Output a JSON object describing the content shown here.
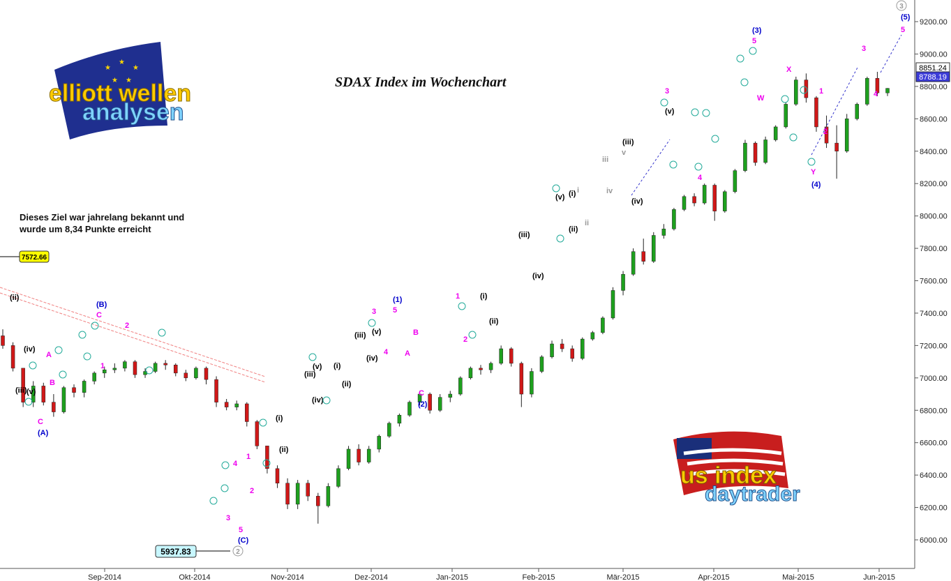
{
  "chart_data": {
    "type": "candlestick",
    "title": "SDAX Index im Wochenchart",
    "ylim": [
      5880,
      9300
    ],
    "y_ticks": [
      "6000.00",
      "6200.00",
      "6400.00",
      "6600.00",
      "6800.00",
      "7000.00",
      "7200.00",
      "7400.00",
      "7600.00",
      "7800.00",
      "8000.00",
      "8200.00",
      "8400.00",
      "8600.00",
      "8800.00",
      "9000.00",
      "9200.00"
    ],
    "x_ticks": [
      "Sep-2014",
      "Okt-2014",
      "Nov-2014",
      "Dez-2014",
      "Jan-2015",
      "Feb-2015",
      "Mär-2015",
      "Apr-2015",
      "Mai-2015",
      "Jun-2015"
    ],
    "price_labels": {
      "last_close": "8788.19",
      "high_mark": "8851.24"
    },
    "annotation": "Dieses Ziel war jahrelang bekannt und wurde um 8,34 Punkte erreicht",
    "target_box": "7572.66",
    "low_box": "5937.83",
    "candles": [
      [
        7260,
        7300,
        7180,
        7200
      ],
      [
        7200,
        7220,
        7040,
        7060
      ],
      [
        7060,
        7060,
        6820,
        6850
      ],
      [
        6850,
        6980,
        6820,
        6950
      ],
      [
        6950,
        6970,
        6830,
        6850
      ],
      [
        6850,
        6900,
        6760,
        6790
      ],
      [
        6790,
        6950,
        6780,
        6940
      ],
      [
        6940,
        6960,
        6880,
        6910
      ],
      [
        6910,
        6990,
        6880,
        6980
      ],
      [
        6980,
        7040,
        6960,
        7030
      ],
      [
        7030,
        7070,
        7000,
        7050
      ],
      [
        7050,
        7090,
        7030,
        7060
      ],
      [
        7060,
        7110,
        7040,
        7100
      ],
      [
        7100,
        7110,
        7000,
        7020
      ],
      [
        7020,
        7060,
        7000,
        7040
      ],
      [
        7040,
        7100,
        7030,
        7090
      ],
      [
        7090,
        7110,
        7050,
        7080
      ],
      [
        7080,
        7090,
        7010,
        7030
      ],
      [
        7030,
        7050,
        6980,
        7000
      ],
      [
        7000,
        7070,
        6990,
        7060
      ],
      [
        7060,
        7070,
        6960,
        6990
      ],
      [
        6990,
        7010,
        6820,
        6850
      ],
      [
        6850,
        6870,
        6800,
        6820
      ],
      [
        6820,
        6860,
        6800,
        6840
      ],
      [
        6840,
        6850,
        6700,
        6730
      ],
      [
        6730,
        6740,
        6560,
        6580
      ],
      [
        6580,
        6580,
        6410,
        6440
      ],
      [
        6440,
        6460,
        6320,
        6350
      ],
      [
        6350,
        6380,
        6190,
        6220
      ],
      [
        6220,
        6370,
        6190,
        6350
      ],
      [
        6350,
        6370,
        6240,
        6270
      ],
      [
        6270,
        6290,
        6100,
        6210
      ],
      [
        6210,
        6350,
        6200,
        6330
      ],
      [
        6330,
        6460,
        6320,
        6440
      ],
      [
        6440,
        6580,
        6430,
        6560
      ],
      [
        6560,
        6590,
        6460,
        6480
      ],
      [
        6480,
        6580,
        6470,
        6560
      ],
      [
        6560,
        6650,
        6540,
        6640
      ],
      [
        6640,
        6730,
        6630,
        6720
      ],
      [
        6720,
        6780,
        6700,
        6770
      ],
      [
        6770,
        6860,
        6760,
        6850
      ],
      [
        6850,
        6920,
        6830,
        6900
      ],
      [
        6900,
        6910,
        6780,
        6800
      ],
      [
        6800,
        6900,
        6790,
        6880
      ],
      [
        6880,
        6920,
        6850,
        6900
      ],
      [
        6900,
        7010,
        6890,
        7000
      ],
      [
        7000,
        7070,
        6990,
        7060
      ],
      [
        7060,
        7080,
        7020,
        7050
      ],
      [
        7050,
        7100,
        7030,
        7090
      ],
      [
        7090,
        7200,
        7080,
        7180
      ],
      [
        7180,
        7190,
        7070,
        7090
      ],
      [
        7090,
        7100,
        6820,
        6900
      ],
      [
        6900,
        7060,
        6880,
        7040
      ],
      [
        7040,
        7140,
        7030,
        7130
      ],
      [
        7130,
        7230,
        7120,
        7210
      ],
      [
        7210,
        7240,
        7160,
        7180
      ],
      [
        7180,
        7200,
        7100,
        7120
      ],
      [
        7120,
        7250,
        7110,
        7240
      ],
      [
        7240,
        7290,
        7230,
        7280
      ],
      [
        7280,
        7380,
        7270,
        7370
      ],
      [
        7370,
        7560,
        7360,
        7540
      ],
      [
        7540,
        7660,
        7510,
        7640
      ],
      [
        7640,
        7800,
        7630,
        7780
      ],
      [
        7780,
        7860,
        7700,
        7720
      ],
      [
        7720,
        7900,
        7710,
        7880
      ],
      [
        7880,
        7950,
        7860,
        7920
      ],
      [
        7920,
        8050,
        7910,
        8040
      ],
      [
        8040,
        8130,
        8030,
        8120
      ],
      [
        8120,
        8140,
        8060,
        8080
      ],
      [
        8080,
        8200,
        8070,
        8190
      ],
      [
        8190,
        8200,
        7970,
        8030
      ],
      [
        8030,
        8160,
        8020,
        8150
      ],
      [
        8150,
        8290,
        8140,
        8280
      ],
      [
        8280,
        8470,
        8270,
        8450
      ],
      [
        8450,
        8460,
        8310,
        8330
      ],
      [
        8330,
        8490,
        8320,
        8470
      ],
      [
        8470,
        8560,
        8460,
        8550
      ],
      [
        8550,
        8700,
        8540,
        8690
      ],
      [
        8690,
        8860,
        8680,
        8840
      ],
      [
        8840,
        8880,
        8700,
        8730
      ],
      [
        8730,
        8740,
        8520,
        8550
      ],
      [
        8550,
        8620,
        8420,
        8450
      ],
      [
        8450,
        8560,
        8230,
        8400
      ],
      [
        8400,
        8630,
        8390,
        8600
      ],
      [
        8600,
        8700,
        8590,
        8690
      ],
      [
        8690,
        8860,
        8680,
        8850
      ],
      [
        8850,
        8890,
        8740,
        8760
      ],
      [
        8760,
        8790,
        8740,
        8788
      ]
    ]
  }
}
